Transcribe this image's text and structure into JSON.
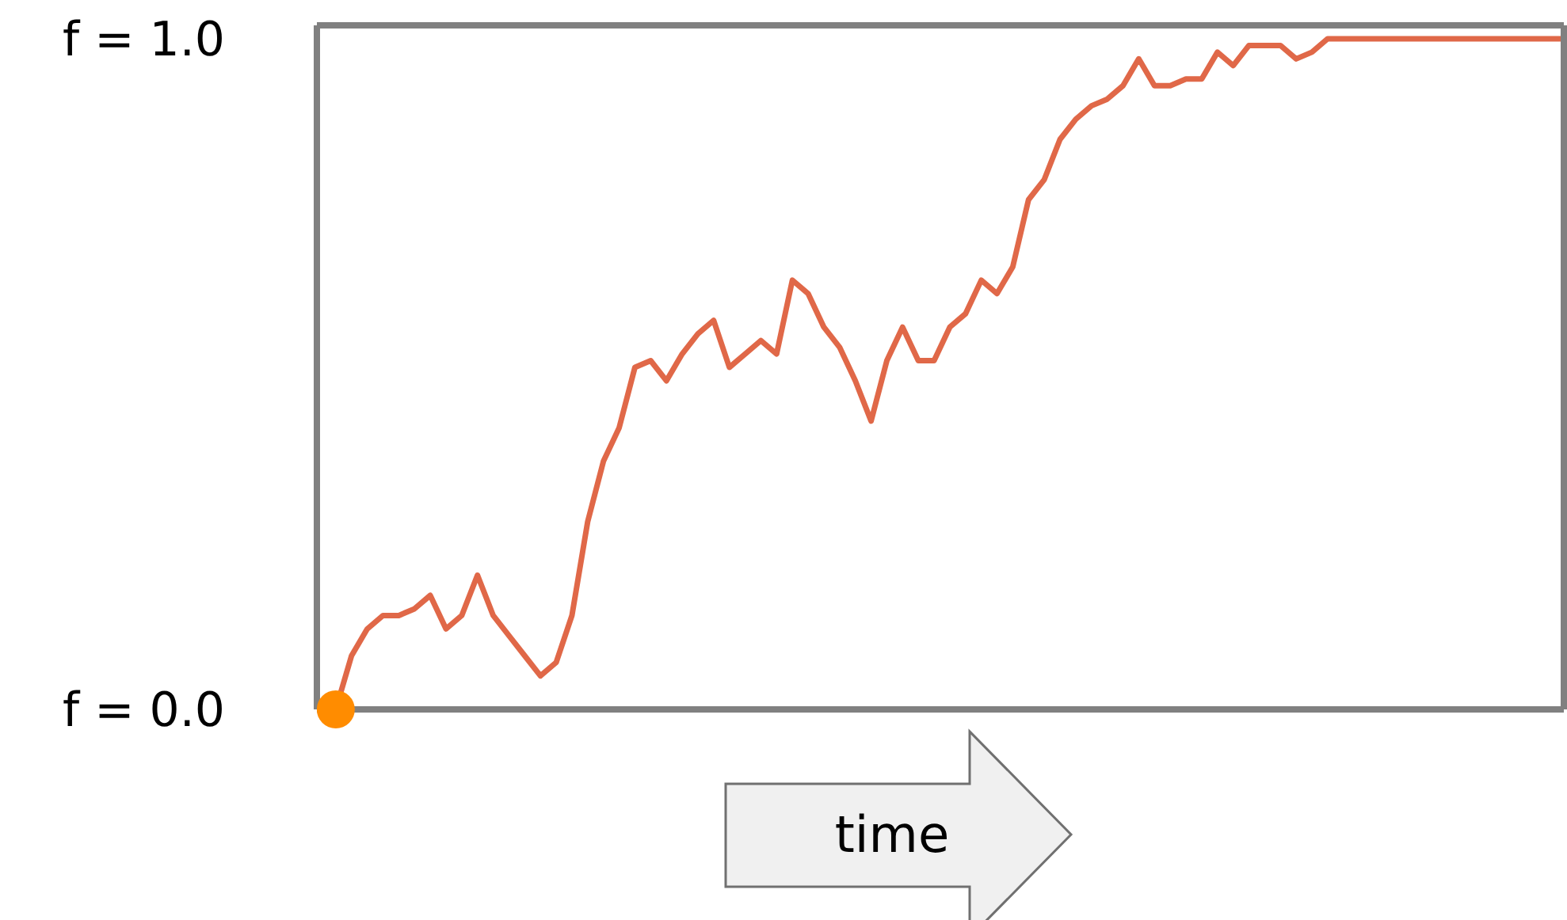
{
  "chart_data": {
    "type": "line",
    "xlabel": "time",
    "tick_labels": "y",
    "grid": false,
    "categories": [
      null,
      null,
      null,
      null,
      null,
      null,
      null,
      null,
      null,
      null,
      null,
      null,
      null,
      null,
      null,
      null,
      null,
      null,
      null,
      null,
      null,
      null,
      null,
      null,
      null,
      null,
      null,
      null,
      null,
      null,
      null,
      null,
      null,
      null,
      null,
      null,
      null,
      null,
      null,
      null,
      null,
      null,
      null,
      null,
      null,
      null,
      null,
      null,
      null,
      null,
      null,
      null,
      null,
      null,
      null,
      null,
      null,
      null,
      null,
      null,
      null,
      null,
      null,
      null,
      null,
      null,
      null,
      null,
      null,
      null,
      null,
      null,
      null,
      null,
      null,
      null,
      null,
      null,
      null
    ],
    "series": [
      {
        "color": "#e06848",
        "marker": "none",
        "values": [
          0.0,
          0.08,
          0.12,
          0.14,
          0.14,
          0.15,
          0.17,
          0.12,
          0.14,
          0.2,
          0.14,
          0.11,
          0.08,
          0.05,
          0.07,
          0.14,
          0.28,
          0.37,
          0.42,
          0.51,
          0.52,
          0.49,
          0.53,
          0.56,
          0.58,
          0.51,
          0.53,
          0.55,
          0.53,
          0.64,
          0.62,
          0.57,
          0.54,
          0.49,
          0.43,
          0.52,
          0.57,
          0.52,
          0.52,
          0.57,
          0.59,
          0.64,
          0.62,
          0.66,
          0.76,
          0.79,
          0.85,
          0.88,
          0.9,
          0.91,
          0.93,
          0.97,
          0.93,
          0.93,
          0.94,
          0.94,
          0.98,
          0.96,
          0.99,
          0.99,
          0.99,
          0.97,
          0.98,
          1.0,
          1.0,
          1.0,
          1.0,
          1.0,
          1.0,
          1.0,
          1.0,
          1.0,
          1.0,
          1.0,
          1.0,
          1.0,
          1.0,
          1.0,
          1.0
        ]
      },
      {
        "type": "scatter",
        "color": "#ff8c00",
        "marker": "circle",
        "values": [
          0.0,
          null,
          null,
          null,
          null,
          null,
          null,
          null,
          null,
          null,
          null,
          null,
          null,
          null,
          null,
          null,
          null,
          null,
          null,
          null,
          null,
          null,
          null,
          null,
          null,
          null,
          null,
          null,
          null,
          null,
          null,
          null,
          null,
          null,
          null,
          null,
          null,
          null,
          null,
          null,
          null,
          null,
          null,
          null,
          null,
          null,
          null,
          null,
          null,
          null,
          null,
          null,
          null,
          null,
          null,
          null,
          null,
          null,
          null,
          null,
          null,
          null,
          null,
          null,
          null,
          null,
          null,
          null,
          null,
          null,
          null,
          null,
          null,
          null,
          null,
          null,
          null,
          null,
          null
        ]
      }
    ],
    "ylim": [
      0,
      1.02
    ],
    "yticks": [
      {
        "value": 0,
        "label": "f = 0.0"
      },
      {
        "value": 1,
        "label": "f = 1.0"
      }
    ]
  }
}
